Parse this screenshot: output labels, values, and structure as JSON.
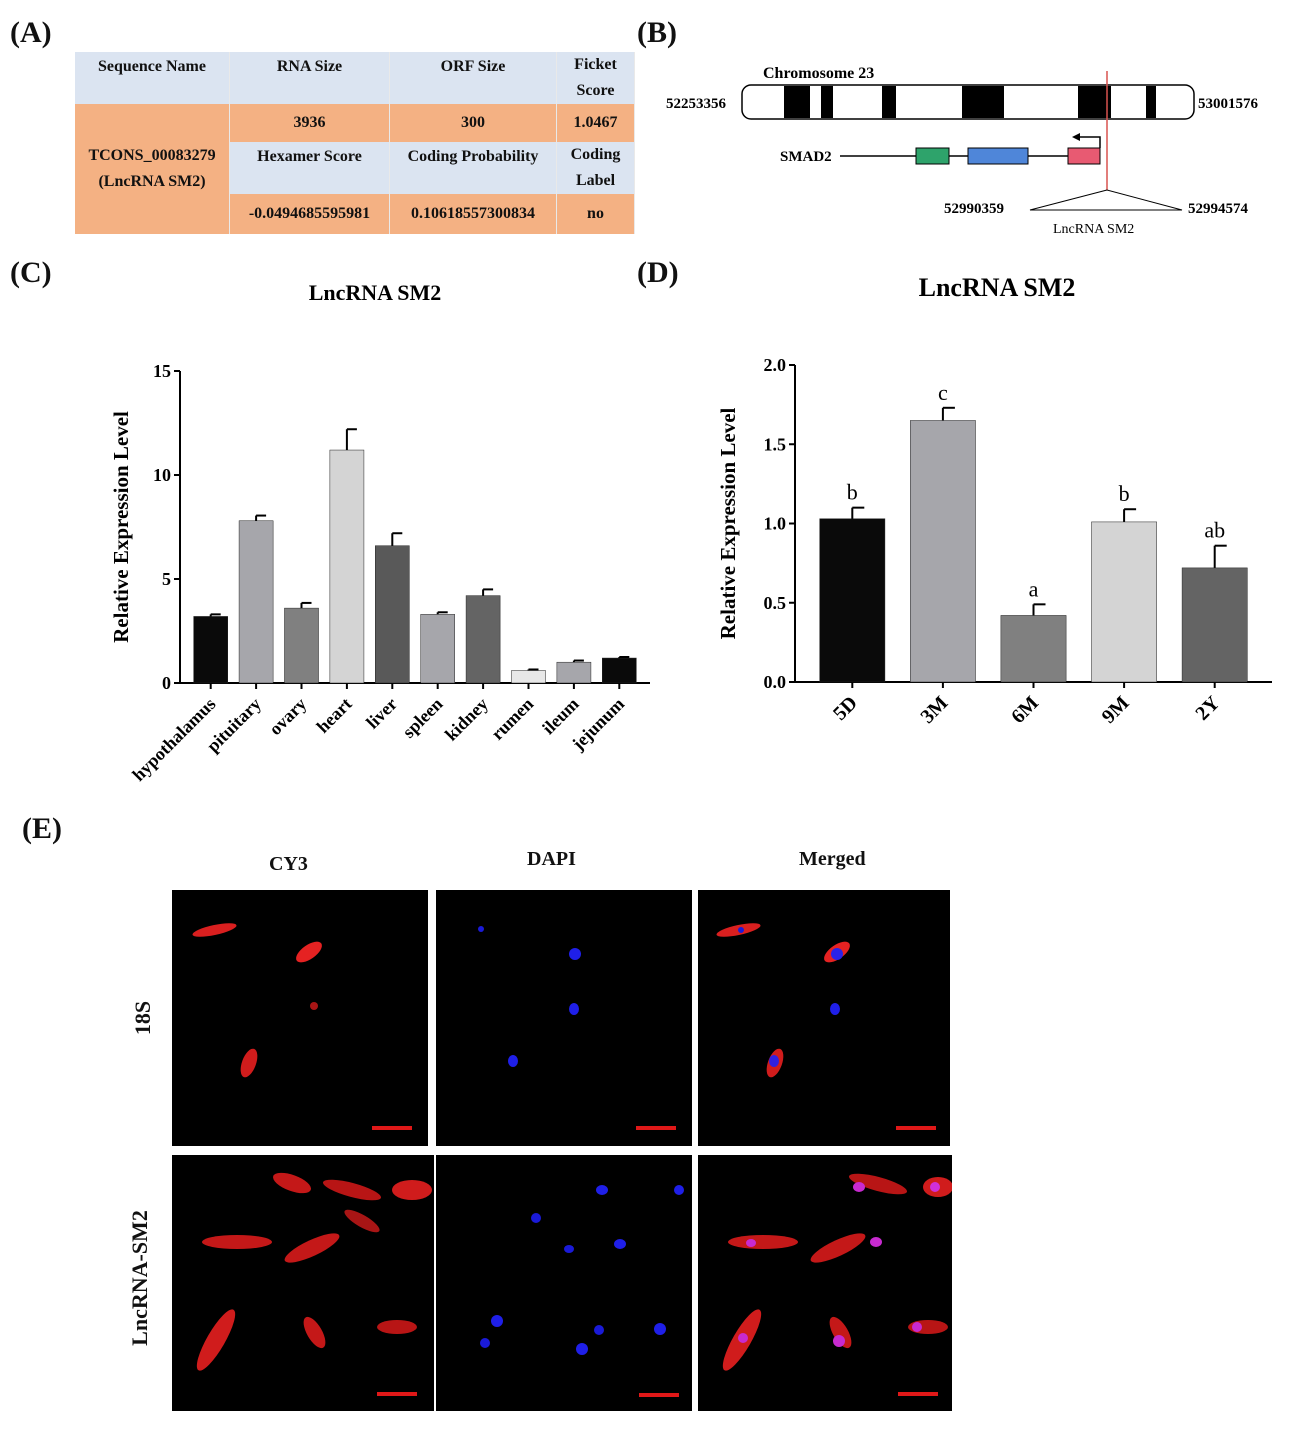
{
  "panels": {
    "a": "(A)",
    "b": "(B)",
    "c": "(C)",
    "d": "(D)",
    "e": "(E)"
  },
  "table_a": {
    "headers": [
      "Sequence Name",
      "RNA Size",
      "ORF Size",
      "Ficket Score"
    ],
    "sequence_name": "TCONS_00083279 (LncRNA SM2)",
    "row1": [
      "3936",
      "300",
      "1.0467"
    ],
    "headers2": [
      "Hexamer Score",
      "Coding Probability",
      "Coding Label"
    ],
    "row2": [
      "-0.0494685595981",
      "0.10618557300834",
      "no"
    ],
    "colors": {
      "header": "#dbe4f1",
      "body": "#f4b183"
    }
  },
  "panel_b": {
    "chromosome": "Chromosome 23",
    "start": "52253356",
    "end": "53001576",
    "gene": "SMAD2",
    "lnc_start": "52990359",
    "lnc_end": "52994574",
    "lnc_name": "LncRNA SM2",
    "exon_colors": [
      "#2ea36b",
      "#4f86d9",
      "#e85a72"
    ]
  },
  "chart_data": [
    {
      "type": "bar",
      "title": "LncRNA SM2",
      "xlabel": "",
      "ylabel": "Relative Expression Level",
      "ylim": [
        0,
        15
      ],
      "yticks": [
        "0",
        "5",
        "10",
        "15"
      ],
      "categories": [
        "hypothalamus",
        "pituitary",
        "ovary",
        "heart",
        "liver",
        "spleen",
        "kidney",
        "rumen",
        "ileum",
        "jejunum"
      ],
      "values": [
        3.2,
        7.8,
        3.6,
        11.2,
        6.6,
        3.3,
        4.2,
        0.6,
        1.0,
        1.2
      ],
      "errors": [
        0.1,
        0.25,
        0.25,
        1.0,
        0.6,
        0.1,
        0.3,
        0.05,
        0.08,
        0.05
      ],
      "colors": [
        "#0a0a0a",
        "#a6a6ab",
        "#808080",
        "#d4d4d4",
        "#595959",
        "#a6a6ab",
        "#646464",
        "#e8e8e8",
        "#a6a6ab",
        "#0a0a0a"
      ]
    },
    {
      "type": "bar",
      "title": "LncRNA SM2",
      "xlabel": "",
      "ylabel": "Relative Expression Level",
      "ylim": [
        0,
        2.0
      ],
      "yticks": [
        "0.0",
        "0.5",
        "1.0",
        "1.5",
        "2.0"
      ],
      "categories": [
        "5D",
        "3M",
        "6M",
        "9M",
        "2Y"
      ],
      "values": [
        1.03,
        1.65,
        0.42,
        1.01,
        0.72
      ],
      "errors": [
        0.07,
        0.08,
        0.07,
        0.08,
        0.14
      ],
      "letters": [
        "b",
        "c",
        "a",
        "b",
        "ab"
      ],
      "colors": [
        "#0a0a0a",
        "#a6a6ab",
        "#808080",
        "#d4d4d4",
        "#646464"
      ]
    }
  ],
  "panel_e": {
    "columns": [
      "CY3",
      "DAPI",
      "Merged"
    ],
    "rows": [
      "18S",
      "LncRNA-SM2"
    ]
  }
}
